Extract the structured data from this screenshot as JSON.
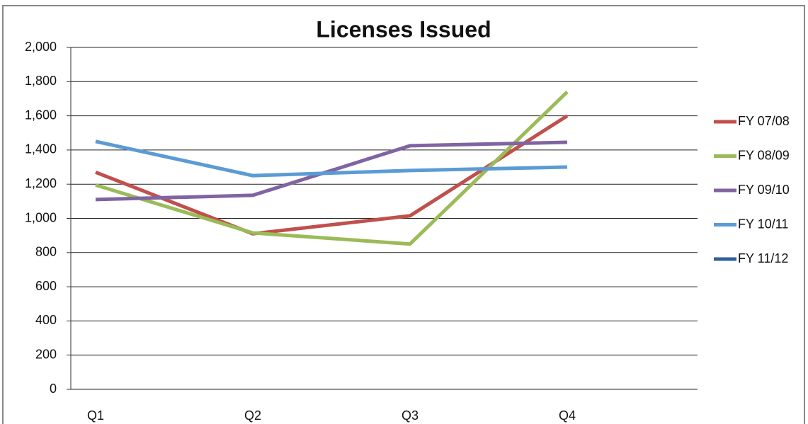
{
  "chart_data": {
    "type": "line",
    "title": "Licenses Issued",
    "categories": [
      "Q1",
      "Q2",
      "Q3",
      "Q4"
    ],
    "series": [
      {
        "name": "FY 07/08",
        "color": "#c0504d",
        "values": [
          1270,
          910,
          1015,
          1600
        ]
      },
      {
        "name": "FY 08/09",
        "color": "#9bbb59",
        "values": [
          1195,
          915,
          850,
          1740
        ]
      },
      {
        "name": "FY 09/10",
        "color": "#8064a2",
        "values": [
          1110,
          1135,
          1425,
          1445
        ]
      },
      {
        "name": "FY 10/11",
        "color": "#5b9bd5",
        "values": [
          1450,
          1250,
          1280,
          1300
        ]
      },
      {
        "name": "FY 11/12",
        "color": "#2e5f9e",
        "values": [
          null,
          null,
          null,
          null
        ]
      }
    ],
    "ylim": [
      0,
      2000
    ],
    "yticks": [
      0,
      200,
      400,
      600,
      800,
      {
        "value": 1000,
        "label": "1,000"
      },
      {
        "value": 1200,
        "label": "1,200"
      },
      {
        "value": 1400,
        "label": "1,400"
      },
      {
        "value": 1600,
        "label": "1,600"
      },
      {
        "value": 1800,
        "label": "1,800"
      },
      {
        "value": 2000,
        "label": "2,000"
      }
    ],
    "grid": true,
    "legend": "right"
  }
}
